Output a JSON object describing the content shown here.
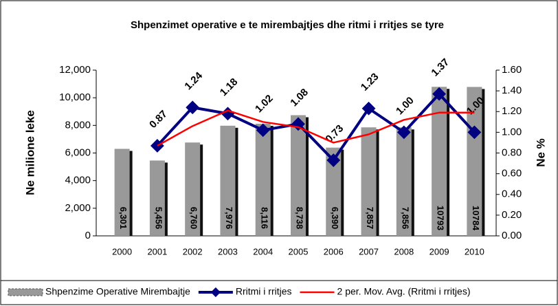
{
  "chart_data": {
    "type": "bar",
    "title": "Shpenzimet operative e te mirembajtjes dhe ritmi i rritjes se tyre",
    "ylabel": "Ne milione leke",
    "y2label": "Ne %",
    "categories": [
      "2000",
      "2001",
      "2002",
      "2003",
      "2004",
      "2005",
      "2006",
      "2007",
      "2008",
      "2009",
      "2010"
    ],
    "series": [
      {
        "name": "Shpenzime Operative Mirembajtje",
        "type": "bar",
        "color": "#999999",
        "values": [
          6301,
          5456,
          6760,
          7976,
          8116,
          8738,
          6390,
          7857,
          7856,
          10793,
          10784
        ],
        "value_labels": [
          "6,301",
          "5,456",
          "6,760",
          "7,976",
          "8,116",
          "8,738",
          "6,390",
          "7,857",
          "7,856",
          "10793",
          "10784"
        ]
      },
      {
        "name": "Rritmi i rritjes",
        "type": "line",
        "axis": "y2",
        "color": "#000080",
        "values": [
          null,
          0.87,
          1.24,
          1.18,
          1.02,
          1.08,
          0.73,
          1.23,
          1.0,
          1.37,
          1.0
        ],
        "value_labels": [
          null,
          "0.87",
          "1.24",
          "1.18",
          "1.02",
          "1.08",
          "0.73",
          "1.23",
          "1.00",
          "1.37",
          "1.00"
        ]
      },
      {
        "name": "2 per. Mov. Avg. (Rritmi i rritjes)",
        "type": "line",
        "axis": "y2",
        "color": "#ff0000",
        "values": [
          null,
          0.87,
          1.06,
          1.21,
          1.1,
          1.05,
          0.9,
          0.98,
          1.12,
          1.19,
          1.19
        ]
      }
    ],
    "ylim": [
      0,
      12000
    ],
    "yticks": [
      0,
      {
        "value": 2000,
        "label": "2,000"
      },
      {
        "value": 4000,
        "label": "4,000"
      },
      {
        "value": 6000,
        "label": "6,000"
      },
      {
        "value": 8000,
        "label": "8,000"
      },
      {
        "value": 10000,
        "label": "10,000"
      },
      {
        "value": 12000,
        "label": "12,000"
      }
    ],
    "y2lim": [
      0,
      1.6
    ],
    "y2ticks": [
      {
        "value": 0,
        "label": "0.00"
      },
      {
        "value": 0.2,
        "label": "0.20"
      },
      {
        "value": 0.4,
        "label": "0.40"
      },
      {
        "value": 0.6,
        "label": "0.60"
      },
      {
        "value": 0.8,
        "label": "0.80"
      },
      {
        "value": 1.0,
        "label": "1.00"
      },
      {
        "value": 1.2,
        "label": "1.20"
      },
      {
        "value": 1.4,
        "label": "1.40"
      },
      {
        "value": 1.6,
        "label": "1.60"
      }
    ]
  }
}
